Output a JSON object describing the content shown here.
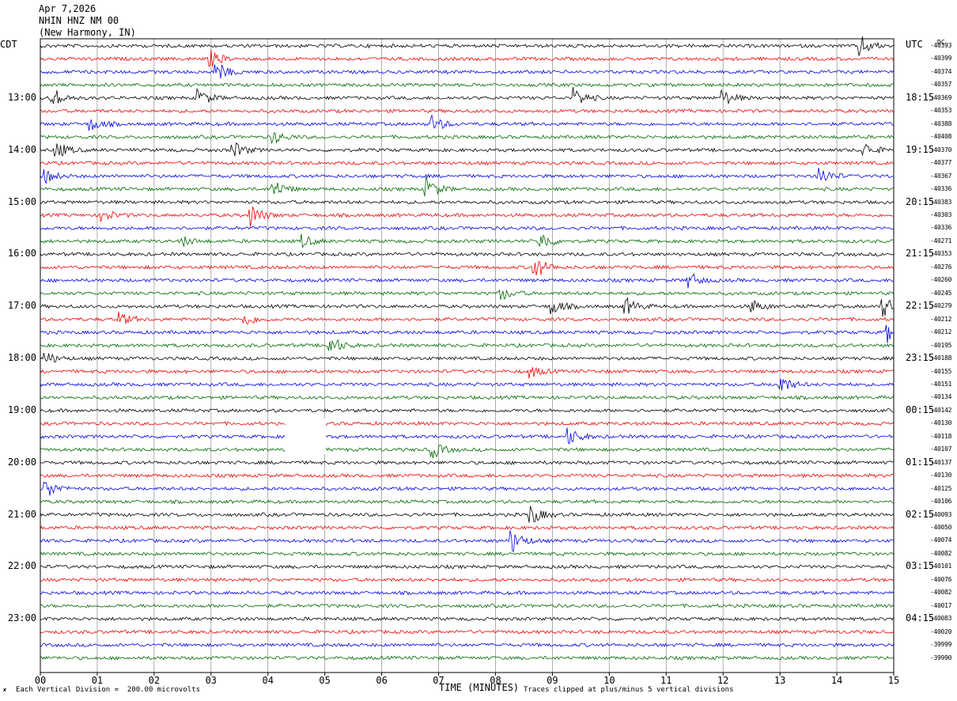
{
  "header": {
    "date": "Apr 7,2026",
    "station": "NHIN HNZ NM 00",
    "location": "(New Harmony, IN)"
  },
  "labels": {
    "left_tz": "CDT",
    "right_tz": "UTC",
    "dc": "DC",
    "xlabel": "TIME (MINUTES)",
    "scale_note": "Each Vertical Division =  200.00 microvolts",
    "clip_note": "Traces clipped at plus/minus 5 vertical divisions",
    "corner_mark": "✘"
  },
  "chart_data": {
    "type": "line",
    "title": "NHIN HNZ NM 00",
    "xlabel": "TIME (MINUTES)",
    "xlim": [
      0,
      15
    ],
    "x_ticks": [
      "00",
      "01",
      "02",
      "03",
      "04",
      "05",
      "06",
      "07",
      "08",
      "09",
      "10",
      "11",
      "12",
      "13",
      "14",
      "15"
    ],
    "left_hour_labels": [
      "13:00",
      "14:00",
      "15:00",
      "16:00",
      "17:00",
      "18:00",
      "19:00",
      "20:00",
      "21:00",
      "22:00",
      "23:00"
    ],
    "right_hour_labels": [
      "18:15",
      "19:15",
      "20:15",
      "21:15",
      "22:15",
      "23:15",
      "00:15",
      "01:15",
      "02:15",
      "03:15",
      "04:15"
    ],
    "trace_colors": [
      "#000000",
      "#ee0000",
      "#0000dd",
      "#006600"
    ],
    "trace_count": 48,
    "dc_offsets": [
      "-40393",
      "-40399",
      "-40374",
      "-40357",
      "-40369",
      "-40353",
      "-40388",
      "-40408",
      "-40370",
      "-40377",
      "-40367",
      "-40336",
      "-40383",
      "-40303",
      "-40336",
      "-40271",
      "-40353",
      "-40276",
      "-40260",
      "-40245",
      "-40279",
      "-40212",
      "-40212",
      "-40195",
      "-40188",
      "-40155",
      "-40151",
      "-40134",
      "-40142",
      "-40130",
      "-40118",
      "-40107",
      "-40137",
      "-40130",
      "-40125",
      "-40106",
      "-40093",
      "-40050",
      "-40074",
      "-40082",
      "-40101",
      "-40076",
      "-40082",
      "-40017",
      "-40083",
      "-40020",
      "-39999",
      "-39990"
    ]
  }
}
